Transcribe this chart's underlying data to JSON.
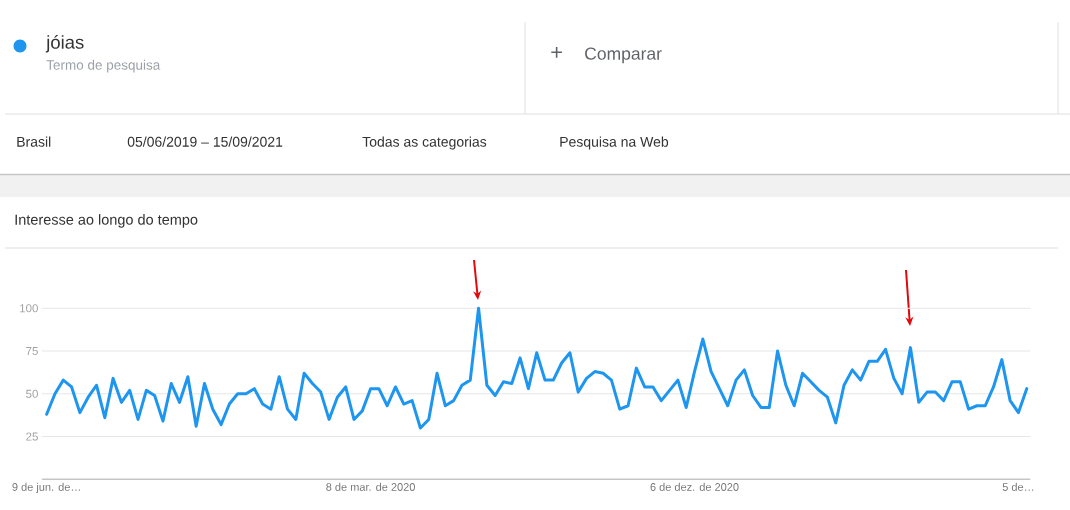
{
  "chart_data": {
    "type": "line",
    "title": "Interesse ao longo do tempo",
    "legend_title": "Termo de pesquisa",
    "annotations": [
      "+",
      "Comparar",
      "Brasil",
      "05/06/2019 – 15/09/2021",
      "Todas as categorias",
      "Pesquisa na Web"
    ],
    "x": [
      "2019-06-09",
      "2019-06-16",
      "2019-06-23",
      "2019-06-30",
      "2019-07-07",
      "2019-07-14",
      "2019-07-21",
      "2019-07-28",
      "2019-08-04",
      "2019-08-11",
      "2019-08-18",
      "2019-08-25",
      "2019-09-01",
      "2019-09-08",
      "2019-09-15",
      "2019-09-22",
      "2019-09-29",
      "2019-10-06",
      "2019-10-13",
      "2019-10-20",
      "2019-10-27",
      "2019-11-03",
      "2019-11-10",
      "2019-11-17",
      "2019-11-24",
      "2019-12-01",
      "2019-12-08",
      "2019-12-15",
      "2019-12-22",
      "2019-12-29",
      "2020-01-05",
      "2020-01-12",
      "2020-01-19",
      "2020-01-26",
      "2020-02-02",
      "2020-02-09",
      "2020-02-16",
      "2020-02-23",
      "2020-03-01",
      "2020-03-08",
      "2020-03-15",
      "2020-03-22",
      "2020-03-29",
      "2020-04-05",
      "2020-04-12",
      "2020-04-19",
      "2020-04-26",
      "2020-05-03",
      "2020-05-10",
      "2020-05-17",
      "2020-05-24",
      "2020-05-31",
      "2020-06-07",
      "2020-06-14",
      "2020-06-21",
      "2020-06-28",
      "2020-07-05",
      "2020-07-12",
      "2020-07-19",
      "2020-07-26",
      "2020-08-02",
      "2020-08-09",
      "2020-08-16",
      "2020-08-23",
      "2020-08-30",
      "2020-09-06",
      "2020-09-13",
      "2020-09-20",
      "2020-09-27",
      "2020-10-04",
      "2020-10-11",
      "2020-10-18",
      "2020-10-25",
      "2020-11-01",
      "2020-11-08",
      "2020-11-15",
      "2020-11-22",
      "2020-11-29",
      "2020-12-06",
      "2020-12-13",
      "2020-12-20",
      "2020-12-27",
      "2021-01-03",
      "2021-01-10",
      "2021-01-17",
      "2021-01-24",
      "2021-01-31",
      "2021-02-07",
      "2021-02-14",
      "2021-02-21",
      "2021-02-28",
      "2021-03-07",
      "2021-03-14",
      "2021-03-21",
      "2021-03-28",
      "2021-04-04",
      "2021-04-11",
      "2021-04-18",
      "2021-04-25",
      "2021-05-02",
      "2021-05-09",
      "2021-05-16",
      "2021-05-23",
      "2021-05-30",
      "2021-06-06",
      "2021-06-13",
      "2021-06-20",
      "2021-06-27",
      "2021-07-04",
      "2021-07-11",
      "2021-07-18",
      "2021-07-25",
      "2021-08-01",
      "2021-08-08",
      "2021-08-15",
      "2021-08-22",
      "2021-08-29",
      "2021-09-05",
      "2021-09-12"
    ],
    "series": [
      {
        "name": "jóias",
        "color": "#1e96f0",
        "values": [
          38,
          50,
          58,
          54,
          39,
          48,
          55,
          36,
          59,
          45,
          52,
          35,
          52,
          49,
          34,
          56,
          45,
          60,
          31,
          56,
          41,
          32,
          44,
          50,
          50,
          53,
          44,
          41,
          60,
          41,
          35,
          62,
          56,
          51,
          35,
          48,
          54,
          35,
          40,
          53,
          53,
          43,
          54,
          44,
          46,
          30,
          35,
          62,
          43,
          46,
          55,
          58,
          100,
          55,
          49,
          57,
          56,
          71,
          53,
          74,
          58,
          58,
          68,
          74,
          51,
          59,
          63,
          62,
          58,
          41,
          43,
          65,
          54,
          54,
          46,
          52,
          58,
          42,
          63,
          82,
          63,
          53,
          43,
          58,
          64,
          49,
          42,
          42,
          75,
          55,
          43,
          62,
          57,
          52,
          48,
          33,
          55,
          64,
          58,
          69,
          69,
          76,
          59,
          50,
          77,
          45,
          51,
          51,
          46,
          57,
          57,
          41,
          43,
          43,
          54,
          70,
          46,
          39,
          53
        ]
      }
    ],
    "xlim": [
      "2019-06-05",
      "2021-09-15"
    ],
    "xticks": [
      {
        "value": "2019-06-09",
        "label": "9 de jun. de…"
      },
      {
        "value": "2020-03-08",
        "label": "8 de mar. de 2020"
      },
      {
        "value": "2020-12-06",
        "label": "6 de dez. de 2020"
      },
      {
        "value": "2021-09-05",
        "label": "5 de…"
      }
    ],
    "ylim": [
      0,
      100
    ],
    "yticks": [
      25,
      50,
      75,
      100
    ],
    "grid": "y",
    "legend": "top left",
    "line_style": "solid"
  }
}
